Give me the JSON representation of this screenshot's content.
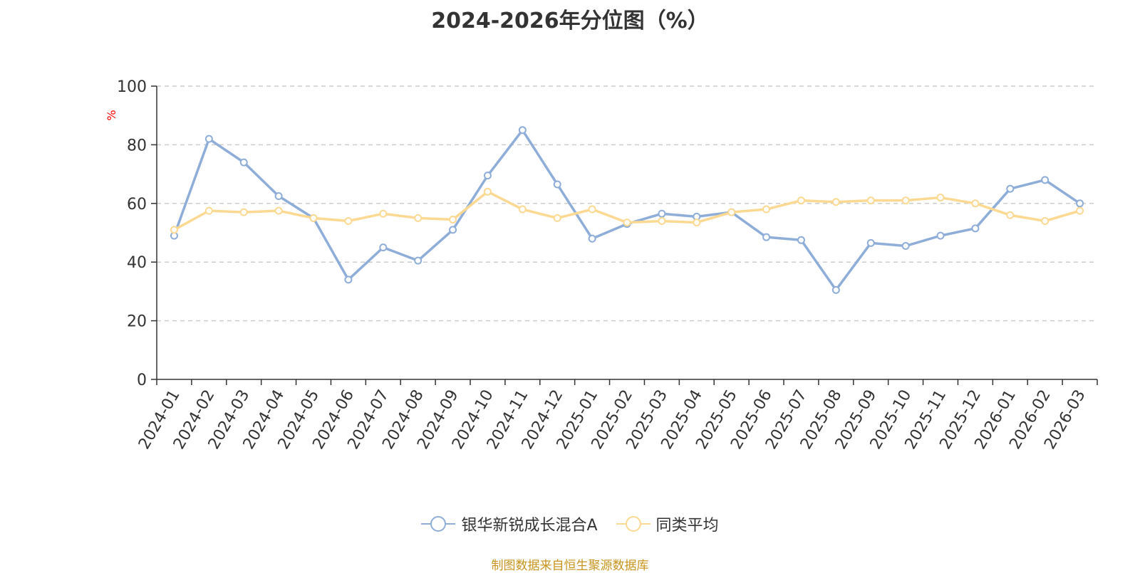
{
  "chart_data": {
    "type": "line",
    "title": "2024-2026年分位图（%）",
    "ylabel": "%",
    "xlabel": "",
    "ylim": [
      0,
      100
    ],
    "yticks": [
      0,
      20,
      40,
      60,
      80,
      100
    ],
    "grid": true,
    "legend_position": "bottom",
    "categories": [
      "2024-01",
      "2024-02",
      "2024-03",
      "2024-04",
      "2024-05",
      "2024-06",
      "2024-07",
      "2024-08",
      "2024-09",
      "2024-10",
      "2024-11",
      "2024-12",
      "2025-01",
      "2025-02",
      "2025-03",
      "2025-04",
      "2025-05",
      "2025-06",
      "2025-07",
      "2025-08",
      "2025-09",
      "2025-10",
      "2025-11",
      "2025-12",
      "2026-01",
      "2026-02",
      "2026-03"
    ],
    "series": [
      {
        "name": "银华新锐成长混合A",
        "color": "#8eadd8",
        "values": [
          49,
          82,
          74,
          62.5,
          55,
          34,
          45,
          40.5,
          51,
          69.5,
          85,
          66.5,
          48,
          53,
          56.5,
          55.5,
          57,
          48.5,
          47.5,
          30.5,
          46.5,
          45.5,
          49,
          51.5,
          65,
          68,
          60
        ]
      },
      {
        "name": "同类平均",
        "color": "#fcd992",
        "values": [
          51,
          57.5,
          57,
          57.5,
          55,
          54,
          56.5,
          55,
          54.5,
          64,
          58,
          55,
          58,
          53.5,
          54,
          53.5,
          57,
          58,
          61,
          60.5,
          61,
          61,
          62,
          60,
          56,
          54,
          57.5
        ]
      }
    ]
  },
  "source_text": "制图数据来自恒生聚源数据库",
  "colors": {
    "axis": "#333333",
    "grid": "#cccccc",
    "ylabel": "#ff0000"
  }
}
